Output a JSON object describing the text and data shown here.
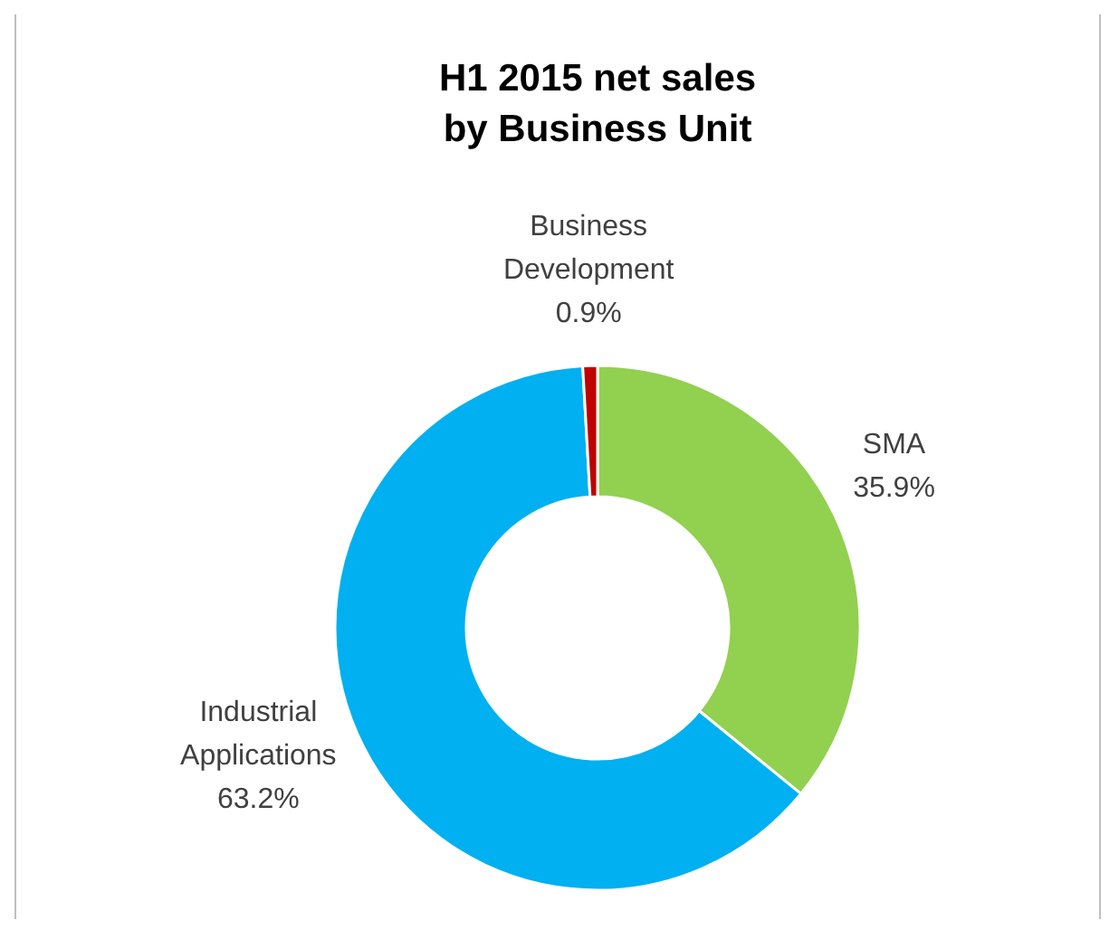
{
  "chart_data": {
    "type": "donut",
    "title": "H1 2015 net sales\nby Business Unit",
    "categories": [
      "SMA",
      "Industrial Applications",
      "Business Development"
    ],
    "values": [
      35.9,
      63.2,
      0.9
    ],
    "colors": [
      "#92d050",
      "#00b0f0",
      "#c00000"
    ],
    "value_labels": [
      "35.9%",
      "63.2%",
      "0.9%"
    ]
  }
}
